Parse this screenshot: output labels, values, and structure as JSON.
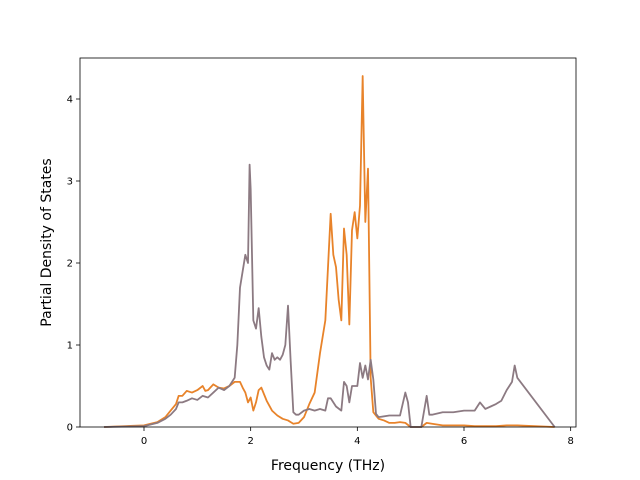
{
  "chart_data": {
    "type": "line",
    "title": "",
    "xlabel": "Frequency (THz)",
    "ylabel": "Partial Density of States",
    "xlim": [
      -1.2,
      8.1
    ],
    "ylim": [
      0,
      4.5
    ],
    "xticks": [
      0,
      2,
      4,
      6,
      8
    ],
    "yticks": [
      0,
      1,
      2,
      3,
      4
    ],
    "grid": false,
    "legend": "none",
    "series": [
      {
        "color": "#e8832a",
        "x": [
          -0.75,
          0.0,
          0.25,
          0.4,
          0.5,
          0.6,
          0.65,
          0.72,
          0.8,
          0.9,
          1.0,
          1.1,
          1.15,
          1.2,
          1.3,
          1.4,
          1.5,
          1.6,
          1.7,
          1.8,
          1.85,
          1.9,
          1.95,
          2.0,
          2.05,
          2.1,
          2.15,
          2.2,
          2.3,
          2.4,
          2.5,
          2.6,
          2.7,
          2.75,
          2.8,
          2.9,
          3.0,
          3.1,
          3.2,
          3.3,
          3.4,
          3.5,
          3.55,
          3.6,
          3.65,
          3.7,
          3.75,
          3.8,
          3.85,
          3.9,
          3.95,
          4.0,
          4.05,
          4.1,
          4.15,
          4.2,
          4.25,
          4.3,
          4.35,
          4.4,
          4.5,
          4.6,
          4.7,
          4.8,
          4.9,
          5.0,
          5.2,
          5.3,
          5.4,
          5.6,
          5.8,
          6.0,
          6.2,
          6.4,
          6.6,
          6.8,
          7.0,
          7.7
        ],
        "y": [
          0.0,
          0.02,
          0.06,
          0.12,
          0.2,
          0.28,
          0.38,
          0.38,
          0.44,
          0.42,
          0.45,
          0.5,
          0.44,
          0.45,
          0.52,
          0.48,
          0.47,
          0.5,
          0.55,
          0.55,
          0.48,
          0.42,
          0.3,
          0.36,
          0.2,
          0.3,
          0.45,
          0.48,
          0.32,
          0.2,
          0.14,
          0.1,
          0.08,
          0.06,
          0.04,
          0.05,
          0.12,
          0.28,
          0.42,
          0.9,
          1.3,
          2.6,
          2.1,
          1.95,
          1.55,
          1.3,
          2.42,
          2.1,
          1.25,
          2.4,
          2.62,
          2.3,
          2.7,
          4.28,
          2.5,
          3.15,
          0.6,
          0.18,
          0.14,
          0.1,
          0.08,
          0.05,
          0.05,
          0.06,
          0.05,
          0.0,
          0.0,
          0.05,
          0.04,
          0.02,
          0.02,
          0.02,
          0.01,
          0.01,
          0.01,
          0.02,
          0.02,
          0.0
        ]
      },
      {
        "color": "#8c7a82",
        "x": [
          -0.75,
          0.0,
          0.25,
          0.4,
          0.5,
          0.6,
          0.65,
          0.72,
          0.8,
          0.9,
          1.0,
          1.1,
          1.2,
          1.3,
          1.4,
          1.5,
          1.6,
          1.7,
          1.75,
          1.8,
          1.85,
          1.9,
          1.95,
          1.98,
          2.0,
          2.05,
          2.1,
          2.15,
          2.2,
          2.25,
          2.3,
          2.35,
          2.4,
          2.45,
          2.5,
          2.55,
          2.6,
          2.65,
          2.7,
          2.75,
          2.8,
          2.85,
          2.9,
          3.0,
          3.1,
          3.2,
          3.3,
          3.4,
          3.45,
          3.5,
          3.6,
          3.7,
          3.75,
          3.8,
          3.85,
          3.9,
          4.0,
          4.05,
          4.1,
          4.15,
          4.2,
          4.25,
          4.3,
          4.35,
          4.4,
          4.6,
          4.7,
          4.8,
          4.9,
          4.95,
          5.0,
          5.1,
          5.2,
          5.3,
          5.35,
          5.4,
          5.6,
          5.8,
          6.0,
          6.1,
          6.2,
          6.3,
          6.4,
          6.5,
          6.6,
          6.7,
          6.8,
          6.9,
          6.95,
          7.0,
          7.7
        ],
        "y": [
          0.0,
          0.01,
          0.05,
          0.1,
          0.15,
          0.22,
          0.3,
          0.3,
          0.32,
          0.35,
          0.33,
          0.38,
          0.36,
          0.42,
          0.48,
          0.45,
          0.5,
          0.6,
          1.0,
          1.7,
          1.9,
          2.1,
          2.0,
          3.2,
          2.9,
          1.3,
          1.2,
          1.45,
          1.1,
          0.85,
          0.75,
          0.7,
          0.9,
          0.82,
          0.85,
          0.82,
          0.88,
          1.0,
          1.48,
          0.8,
          0.18,
          0.15,
          0.15,
          0.2,
          0.22,
          0.2,
          0.22,
          0.2,
          0.35,
          0.35,
          0.25,
          0.2,
          0.55,
          0.5,
          0.3,
          0.5,
          0.5,
          0.78,
          0.6,
          0.75,
          0.58,
          0.82,
          0.58,
          0.16,
          0.12,
          0.14,
          0.14,
          0.14,
          0.42,
          0.3,
          0.0,
          0.0,
          0.0,
          0.38,
          0.15,
          0.15,
          0.18,
          0.18,
          0.2,
          0.2,
          0.2,
          0.3,
          0.22,
          0.25,
          0.28,
          0.32,
          0.45,
          0.55,
          0.75,
          0.6,
          0.0
        ]
      }
    ]
  }
}
